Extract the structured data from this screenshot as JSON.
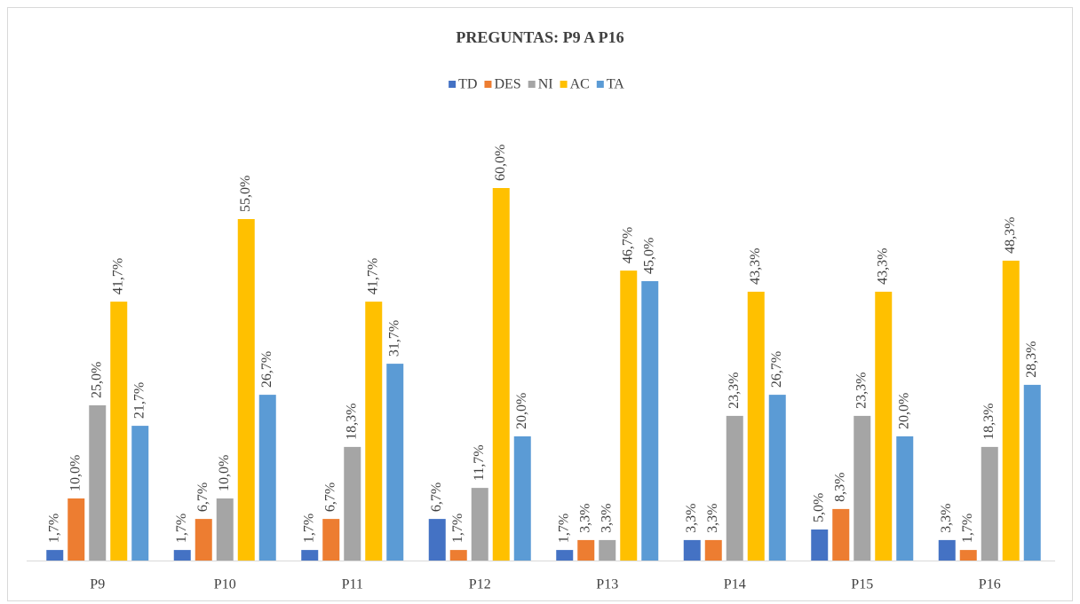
{
  "chart_data": {
    "type": "bar",
    "title": "PREGUNTAS: P9 A P16",
    "categories": [
      "P9",
      "P10",
      "P11",
      "P12",
      "P13",
      "P14",
      "P15",
      "P16"
    ],
    "ylim": [
      0,
      70
    ],
    "legend": "top",
    "series": [
      {
        "name": "TD",
        "color": "#4472c4",
        "values": [
          1.7,
          1.7,
          1.7,
          6.7,
          1.7,
          3.3,
          5.0,
          3.3
        ],
        "value_labels": [
          "1,7%",
          "1,7%",
          "1,7%",
          "6,7%",
          "1,7%",
          "3,3%",
          "5,0%",
          "3,3%"
        ]
      },
      {
        "name": "DES",
        "color": "#ed7d31",
        "values": [
          10.0,
          6.7,
          6.7,
          1.7,
          3.3,
          3.3,
          8.3,
          1.7
        ],
        "value_labels": [
          "10,0%",
          "6,7%",
          "6,7%",
          "1,7%",
          "3,3%",
          "3,3%",
          "8,3%",
          "1,7%"
        ]
      },
      {
        "name": "NI",
        "color": "#a5a5a5",
        "values": [
          25.0,
          10.0,
          18.3,
          11.7,
          3.3,
          23.3,
          23.3,
          18.3
        ],
        "value_labels": [
          "25,0%",
          "10,0%",
          "18,3%",
          "11,7%",
          "3,3%",
          "23,3%",
          "23,3%",
          "18,3%"
        ]
      },
      {
        "name": "AC",
        "color": "#ffc000",
        "values": [
          41.7,
          55.0,
          41.7,
          60.0,
          46.7,
          43.3,
          43.3,
          48.3
        ],
        "value_labels": [
          "41,7%",
          "55,0%",
          "41,7%",
          "60,0%",
          "46,7%",
          "43,3%",
          "43,3%",
          "48,3%"
        ]
      },
      {
        "name": "TA",
        "color": "#5b9bd5",
        "values": [
          21.7,
          26.7,
          31.7,
          20.0,
          45.0,
          26.7,
          20.0,
          28.3
        ],
        "value_labels": [
          "21,7%",
          "26,7%",
          "31,7%",
          "20,0%",
          "45,0%",
          "26,7%",
          "20,0%",
          "28,3%"
        ]
      }
    ]
  }
}
